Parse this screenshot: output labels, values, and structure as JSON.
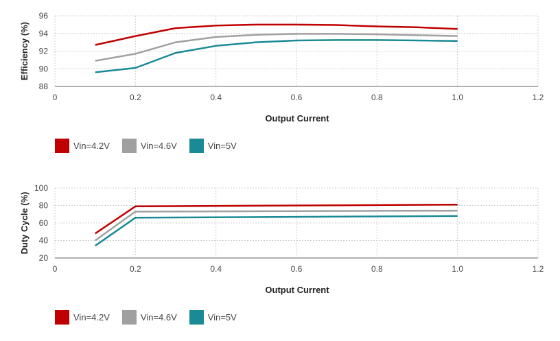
{
  "chart_data": [
    {
      "type": "line",
      "xlabel": "Output Current",
      "ylabel": "Efficiency (%)",
      "xlim": [
        0,
        1.2
      ],
      "ylim": [
        88,
        96
      ],
      "xticks": [
        "0",
        "0.2",
        "0.4",
        "0.6",
        "0.8",
        "1.0",
        "1.2"
      ],
      "yticks": [
        "88",
        "90",
        "92",
        "94",
        "96"
      ],
      "grid": true,
      "legend_position": "bottom-left",
      "x": [
        0.1,
        0.2,
        0.3,
        0.4,
        0.5,
        0.6,
        0.7,
        0.8,
        0.9,
        1.0
      ],
      "series": [
        {
          "name": "Vin=4.2V",
          "color": "#c00000",
          "values": [
            92.7,
            93.7,
            94.6,
            94.9,
            95.0,
            95.0,
            94.95,
            94.8,
            94.7,
            94.5
          ]
        },
        {
          "name": "Vin=4.6V",
          "color": "#a0a0a0",
          "values": [
            90.9,
            91.7,
            93.0,
            93.6,
            93.85,
            93.95,
            93.95,
            93.9,
            93.8,
            93.7
          ]
        },
        {
          "name": "Vin=5V",
          "color": "#1a8a96",
          "values": [
            89.6,
            90.1,
            91.8,
            92.6,
            93.0,
            93.2,
            93.25,
            93.25,
            93.2,
            93.15
          ]
        }
      ]
    },
    {
      "type": "line",
      "xlabel": "Output Current",
      "ylabel": "Duty Cycle (%)",
      "xlim": [
        0,
        1.2
      ],
      "ylim": [
        20,
        100
      ],
      "xticks": [
        "0",
        "0.2",
        "0.4",
        "0.6",
        "0.8",
        "1.0",
        "1.2"
      ],
      "yticks": [
        "20",
        "40",
        "60",
        "80",
        "100"
      ],
      "grid": true,
      "legend_position": "bottom-left",
      "x": [
        0.1,
        0.2,
        1.0
      ],
      "series": [
        {
          "name": "Vin=4.2V",
          "color": "#c00000",
          "values": [
            48,
            79,
            81
          ]
        },
        {
          "name": "Vin=4.6V",
          "color": "#a0a0a0",
          "values": [
            40,
            73,
            74
          ]
        },
        {
          "name": "Vin=5V",
          "color": "#1a8a96",
          "values": [
            34,
            66,
            68
          ]
        }
      ]
    }
  ]
}
